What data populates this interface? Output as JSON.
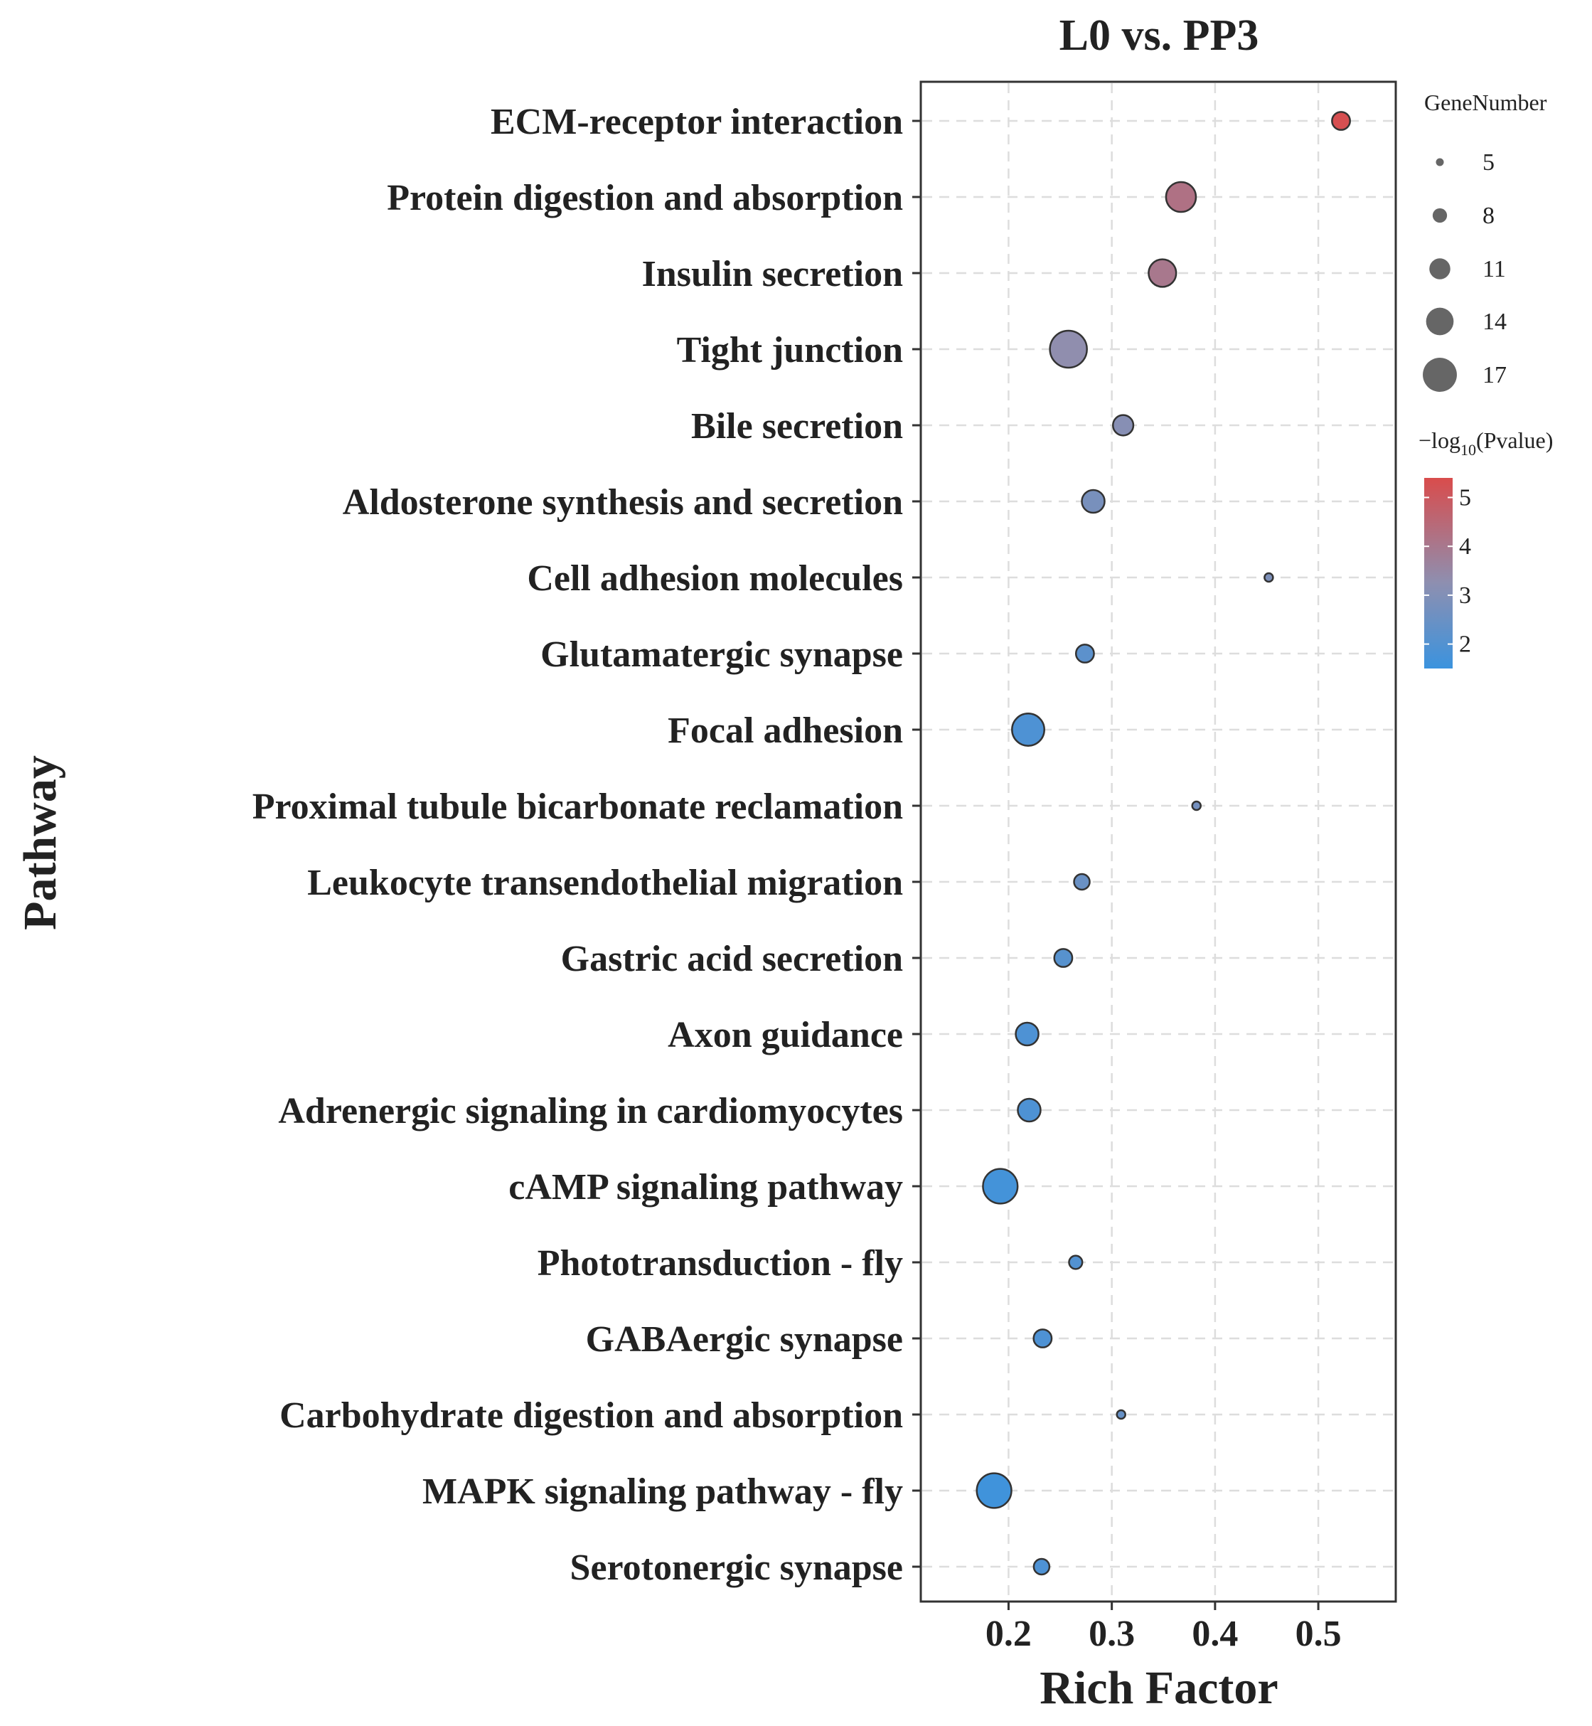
{
  "chart_data": {
    "type": "scatter",
    "title": "L0 vs. PP3",
    "xlabel": "Rich Factor",
    "ylabel": "Pathway",
    "xlim": [
      0.115,
      0.575
    ],
    "xticks": [
      0.2,
      0.3,
      0.4,
      0.5
    ],
    "xtick_labels": [
      "0.2",
      "0.3",
      "0.4",
      "0.5"
    ],
    "grid": true,
    "categories": [
      "ECM-receptor interaction",
      "Protein digestion and absorption",
      "Insulin secretion",
      "Tight junction",
      "Bile secretion",
      "Aldosterone synthesis and secretion",
      "Cell adhesion molecules",
      "Glutamatergic synapse",
      "Focal adhesion",
      "Proximal tubule bicarbonate reclamation",
      "Leukocyte transendothelial migration",
      "Gastric acid secretion",
      "Axon guidance",
      "Adrenergic signaling in cardiomyocytes",
      "cAMP signaling pathway",
      "Phototransduction - fly",
      "GABAergic synapse",
      "Carbohydrate digestion and absorption",
      "MAPK signaling pathway - fly",
      "Serotonergic synapse"
    ],
    "rich_factor": [
      0.522,
      0.367,
      0.349,
      0.258,
      0.311,
      0.282,
      0.452,
      0.274,
      0.219,
      0.382,
      0.271,
      0.253,
      0.218,
      0.22,
      0.192,
      0.265,
      0.233,
      0.309,
      0.186,
      0.232
    ],
    "gene_number": [
      9,
      14,
      13,
      17,
      10,
      11,
      5,
      9,
      15,
      5,
      8,
      9,
      11,
      11,
      16,
      7,
      9,
      5,
      16,
      8
    ],
    "neg_log10_pvalue": [
      5.3,
      4.2,
      4.0,
      3.3,
      3.1,
      2.8,
      2.9,
      2.2,
      1.9,
      2.7,
      2.5,
      2.1,
      1.9,
      1.9,
      1.7,
      2.0,
      1.9,
      2.4,
      1.6,
      1.9
    ],
    "size_legend": {
      "title": "GeneNumber",
      "values": [
        5,
        8,
        11,
        14,
        17
      ],
      "labels": [
        "5",
        "8",
        "11",
        "14",
        "17"
      ]
    },
    "color_legend": {
      "title_prefix": "−log",
      "title_sub": "10",
      "title_suffix": "(Pvalue)",
      "ticks": [
        2,
        3,
        4,
        5
      ],
      "tick_labels": [
        "2",
        "3",
        "4",
        "5"
      ],
      "range": [
        1.5,
        5.4
      ],
      "low_color": "#3b93de",
      "mid_color": "#8e8fb0",
      "high_color": "#d94c4c"
    },
    "point_stroke": "#333333"
  }
}
